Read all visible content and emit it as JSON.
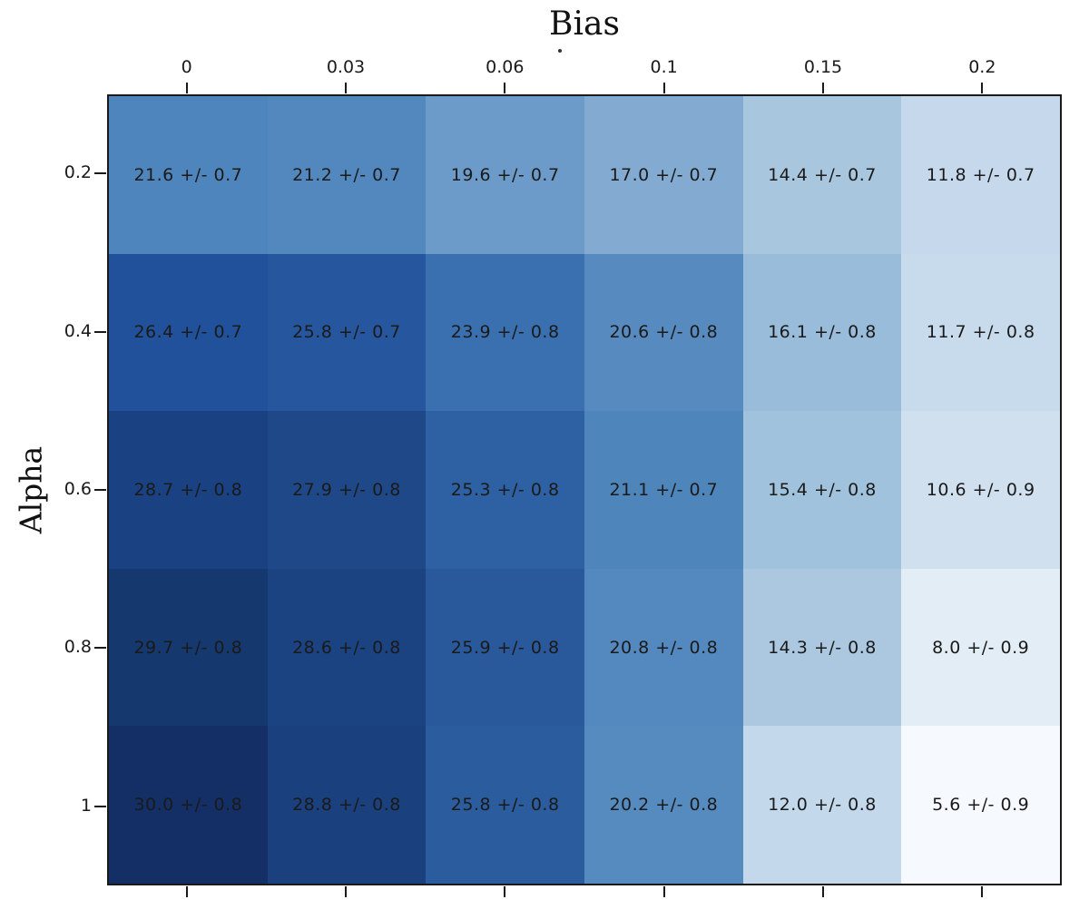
{
  "chart_data": {
    "type": "heatmap",
    "title": "Bias",
    "ylabel": "Alpha",
    "x_axis_position": "top",
    "x_ticks": [
      "0",
      "0.03",
      "0.06",
      "0.1",
      "0.15",
      "0.2"
    ],
    "y_ticks": [
      "0.2",
      "0.4",
      "0.6",
      "0.8",
      "1"
    ],
    "colormap": "Blues",
    "value_range": [
      5.6,
      30.0
    ],
    "grid": false,
    "text_color": "#1a1a1a",
    "axis_color": "#1a1a1a",
    "rows": [
      {
        "alpha": "0.2",
        "values": [
          21.6,
          21.2,
          19.6,
          17.0,
          14.4,
          11.8
        ],
        "errors": [
          0.7,
          0.7,
          0.7,
          0.7,
          0.7,
          0.7
        ],
        "labels": [
          "21.6 +/- 0.7",
          "21.2 +/- 0.7",
          "19.6 +/- 0.7",
          "17.0 +/- 0.7",
          "14.4 +/- 0.7",
          "11.8 +/- 0.7"
        ],
        "colors": [
          "#4e85bc",
          "#5288be",
          "#6d9bc9",
          "#83abd1",
          "#a9c6df",
          "#c6d9ec"
        ]
      },
      {
        "alpha": "0.4",
        "values": [
          26.4,
          25.8,
          23.9,
          20.6,
          16.1,
          11.7
        ],
        "errors": [
          0.7,
          0.7,
          0.8,
          0.8,
          0.8,
          0.8
        ],
        "labels": [
          "26.4 +/- 0.7",
          "25.8 +/- 0.7",
          "23.9 +/- 0.8",
          "20.6 +/- 0.8",
          "16.1 +/- 0.8",
          "11.7 +/- 0.8"
        ],
        "colors": [
          "#21519a",
          "#26579e",
          "#3a70af",
          "#578bbf",
          "#98bcda",
          "#c8dbed"
        ]
      },
      {
        "alpha": "0.6",
        "values": [
          28.7,
          27.9,
          25.3,
          21.1,
          15.4,
          10.6
        ],
        "errors": [
          0.8,
          0.8,
          0.8,
          0.7,
          0.8,
          0.9
        ],
        "labels": [
          "28.7 +/- 0.8",
          "27.9 +/- 0.8",
          "25.3 +/- 0.8",
          "21.1 +/- 0.7",
          "15.4 +/- 0.8",
          "10.6 +/- 0.9"
        ],
        "colors": [
          "#1a4181",
          "#1e4888",
          "#2e61a3",
          "#4e85bb",
          "#a0c2dc",
          "#d0e0ef"
        ]
      },
      {
        "alpha": "0.8",
        "values": [
          29.7,
          28.6,
          25.9,
          20.8,
          14.3,
          8.0
        ],
        "errors": [
          0.8,
          0.8,
          0.8,
          0.8,
          0.8,
          0.9
        ],
        "labels": [
          "29.7 +/- 0.8",
          "28.6 +/- 0.8",
          "25.9 +/- 0.8",
          "20.8 +/- 0.8",
          "14.3 +/- 0.8",
          "8.0 +/- 0.9"
        ],
        "colors": [
          "#15386f",
          "#1b4381",
          "#29589b",
          "#5389bf",
          "#abc8e0",
          "#e3edf6"
        ]
      },
      {
        "alpha": "1",
        "values": [
          30.0,
          28.8,
          25.8,
          20.2,
          12.0,
          5.6
        ],
        "errors": [
          0.8,
          0.8,
          0.8,
          0.8,
          0.8,
          0.9
        ],
        "labels": [
          "30.0 +/- 0.8",
          "28.8 +/- 0.8",
          "25.8 +/- 0.8",
          "20.2 +/- 0.8",
          "12.0 +/- 0.8",
          "5.6 +/- 0.9"
        ],
        "colors": [
          "#132f65",
          "#1a407e",
          "#2a5c9e",
          "#568bc0",
          "#c3d8eb",
          "#f6f9fd"
        ]
      }
    ]
  }
}
